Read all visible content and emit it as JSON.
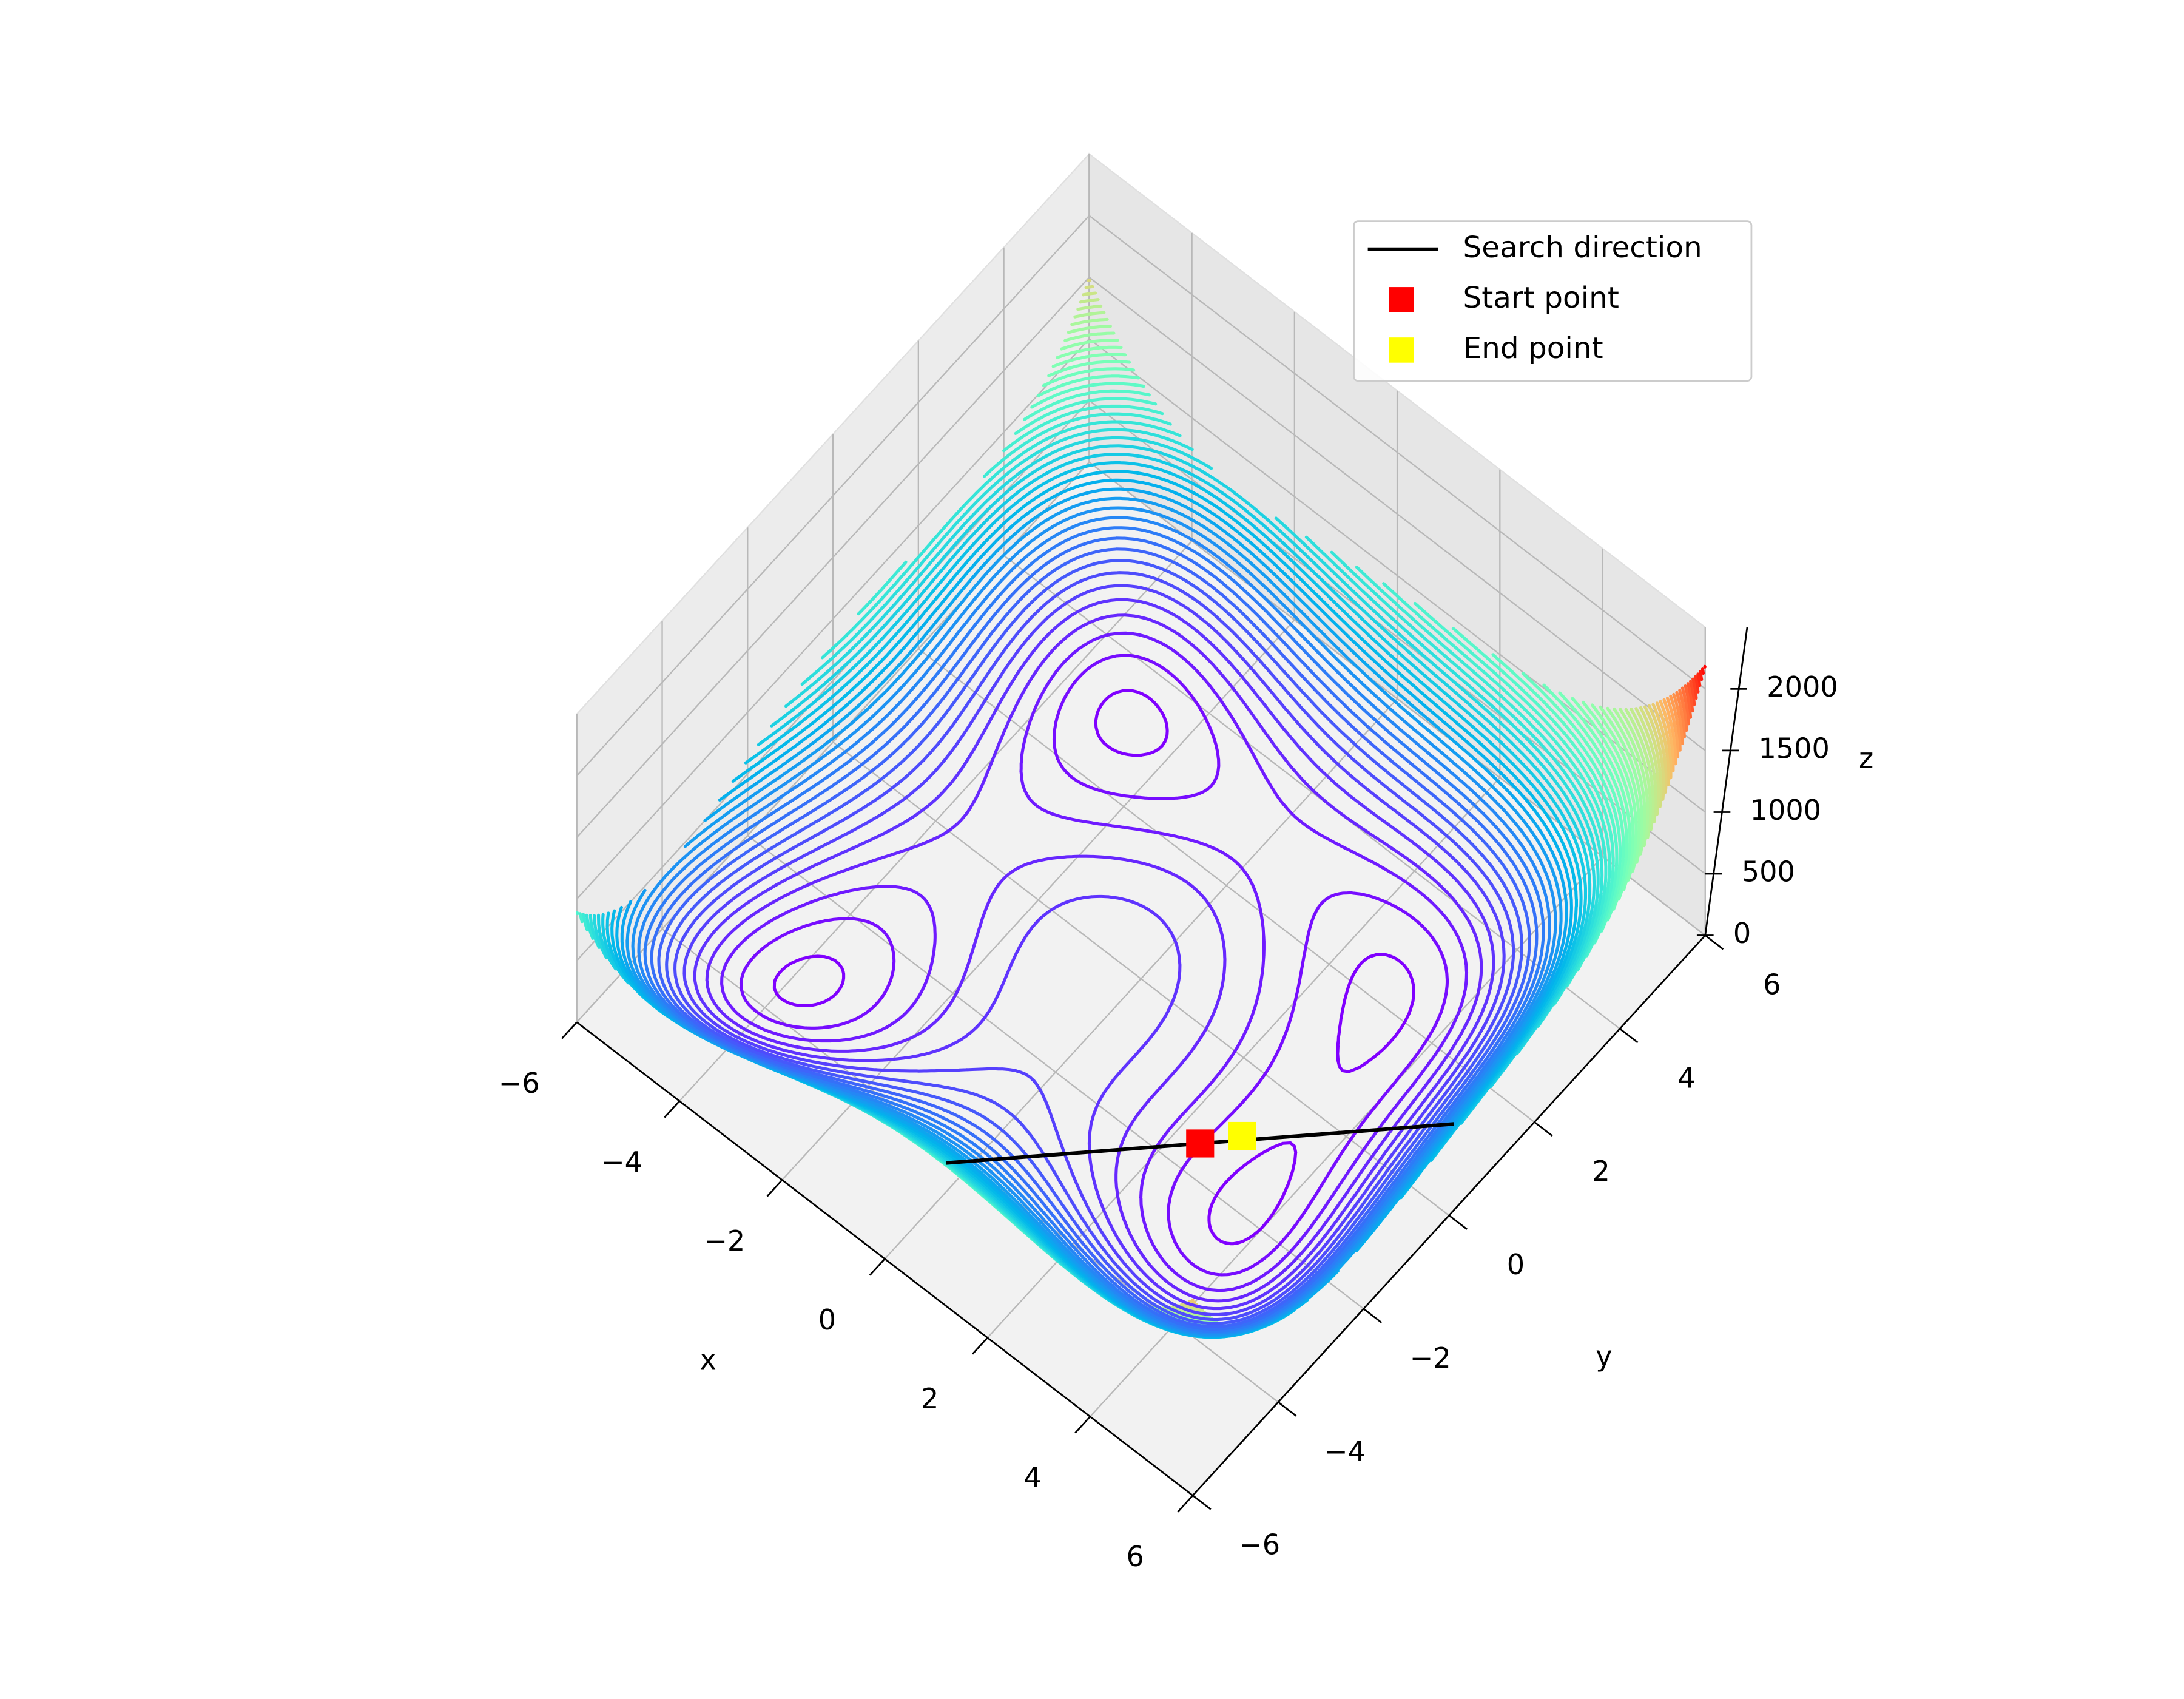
{
  "chart_data": {
    "type": "contour3d",
    "colormap": "rainbow",
    "xlabel": "x",
    "ylabel": "y",
    "zlabel": "z",
    "xlim": [
      -6,
      6
    ],
    "ylim": [
      -6,
      6
    ],
    "zlim": [
      0,
      2500
    ],
    "xticks": [
      {
        "value": -6,
        "label": "−6"
      },
      {
        "value": -4,
        "label": "−4"
      },
      {
        "value": -2,
        "label": "−2"
      },
      0,
      2,
      4,
      6
    ],
    "yticks": [
      {
        "value": -6,
        "label": "−6"
      },
      {
        "value": -4,
        "label": "−4"
      },
      {
        "value": -2,
        "label": "−2"
      },
      0,
      2,
      4,
      6
    ],
    "zticks": [
      0,
      500,
      1000,
      1500,
      2000
    ],
    "grid": true,
    "levels": [
      10,
      45,
      80,
      115,
      150,
      185,
      220,
      255,
      290,
      325,
      360,
      395,
      430,
      465,
      500,
      535,
      570,
      605,
      640,
      675,
      710,
      745,
      780,
      815,
      850,
      885,
      920,
      955,
      990,
      1025,
      1060,
      1095,
      1130,
      1165,
      1200,
      1235,
      1270,
      1305,
      1340,
      1375,
      1410,
      1445,
      1480,
      1515,
      1550,
      1585,
      1620,
      1655,
      1690,
      1725,
      1760,
      1795,
      1830,
      1865,
      1900,
      1935,
      1970,
      2005,
      2040,
      2075,
      2110,
      2145,
      2180
    ],
    "series": [
      {
        "name": "Search direction",
        "color": "#000000",
        "mode": "line",
        "x": [
          -0.3,
          5.1
        ],
        "y": [
          -4.2,
          1.2
        ],
        "z": [
          0,
          0
        ]
      },
      {
        "name": "Start point",
        "color": "#ff0000",
        "mode": "marker",
        "x": [
          2.4
        ],
        "y": [
          -1.5
        ],
        "z": [
          0
        ]
      },
      {
        "name": "End point",
        "color": "#ffff00",
        "mode": "marker",
        "x": [
          2.8
        ],
        "y": [
          -1.0
        ],
        "z": [
          0
        ]
      }
    ],
    "legend": "upper right"
  }
}
